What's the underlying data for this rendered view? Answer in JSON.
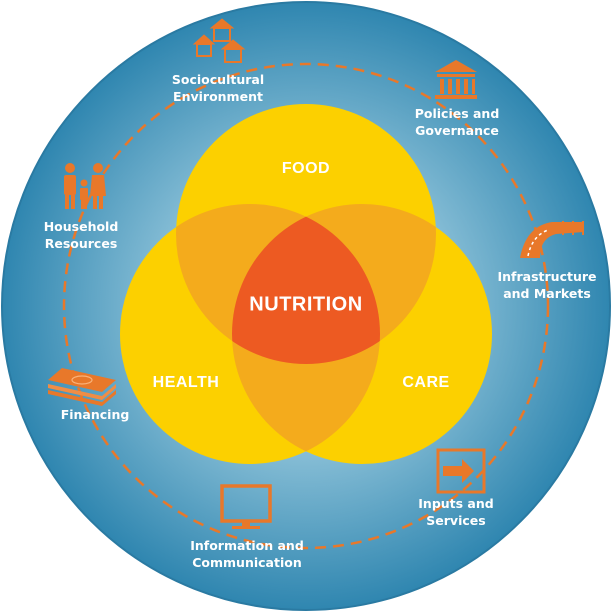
{
  "center": {
    "label": "NUTRITION"
  },
  "circles": {
    "food": "FOOD",
    "health": "HEALTH",
    "care": "CARE"
  },
  "factors": {
    "sociocultural": [
      "Sociocultural",
      "Environment"
    ],
    "policies": [
      "Policies and",
      "Governance"
    ],
    "household": [
      "Household",
      "Resources"
    ],
    "infrastructure": [
      "Infrastructure",
      "and Markets"
    ],
    "financing": [
      "Financing"
    ],
    "inputs": [
      "Inputs and",
      "Services"
    ],
    "information": [
      "Information and",
      "Communication"
    ]
  },
  "icons": {
    "sociocultural": "houses-icon",
    "policies": "government-building-icon",
    "household": "family-icon",
    "infrastructure": "road-bridge-icon",
    "financing": "money-stack-icon",
    "inputs": "arrow-into-box-icon",
    "information": "computer-monitor-icon"
  },
  "colors": {
    "outer_blue": "#2f86b0",
    "inner_blue": "#bcdbe8",
    "ring_dash": "#e8782a",
    "icon_orange": "#e8782a",
    "circle_yellow": "#fcd000",
    "overlap_orange": "#f4ab1c",
    "center_orange_red": "#ed5a22"
  }
}
